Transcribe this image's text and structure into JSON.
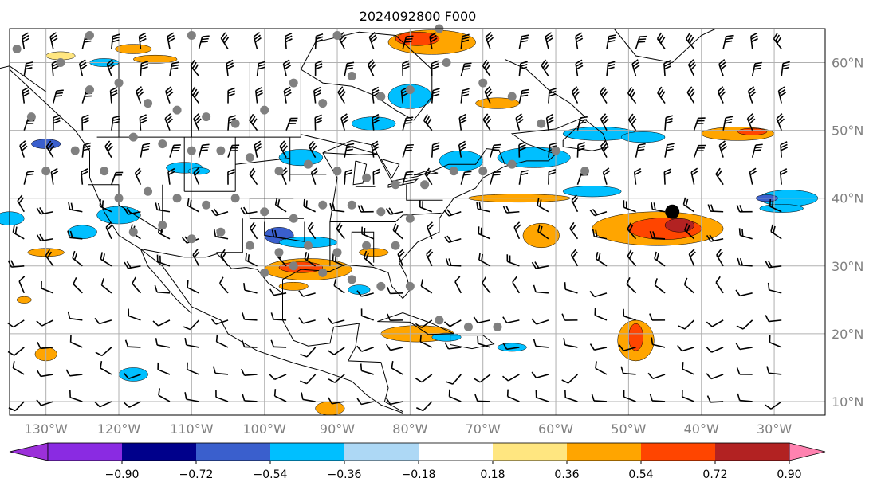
{
  "title": "2024092800 F000",
  "lon_labels": [
    "130°W",
    "120°W",
    "110°W",
    "100°W",
    "90°W",
    "80°W",
    "70°W",
    "60°W",
    "50°W",
    "40°W",
    "30°W"
  ],
  "lat_labels": [
    "60°N",
    "50°N",
    "40°N",
    "30°N",
    "20°N",
    "10°N"
  ],
  "map_extent": {
    "lon_min": -135,
    "lon_max": -23,
    "lat_min": 8,
    "lat_max": 65
  },
  "colorbar": {
    "ticks": [
      "−0.90",
      "−0.72",
      "−0.54",
      "−0.36",
      "−0.18",
      "0.18",
      "0.36",
      "0.54",
      "0.72",
      "0.90"
    ],
    "under_color": "#9b30d9",
    "colors": [
      "#8a2be2",
      "#00008b",
      "#3a5fcd",
      "#00bfff",
      "#add8f5",
      "#ffffff",
      "#ffe680",
      "#ffa500",
      "#ff4500",
      "#b22222"
    ],
    "over_color": "#ff82b0"
  },
  "storm_marker": {
    "lon": -44,
    "lat": 38,
    "color": "#000000"
  },
  "colors": {
    "grid": "#b0b0b0",
    "coast": "#000000",
    "station": "#808080",
    "label": "#808080"
  }
}
